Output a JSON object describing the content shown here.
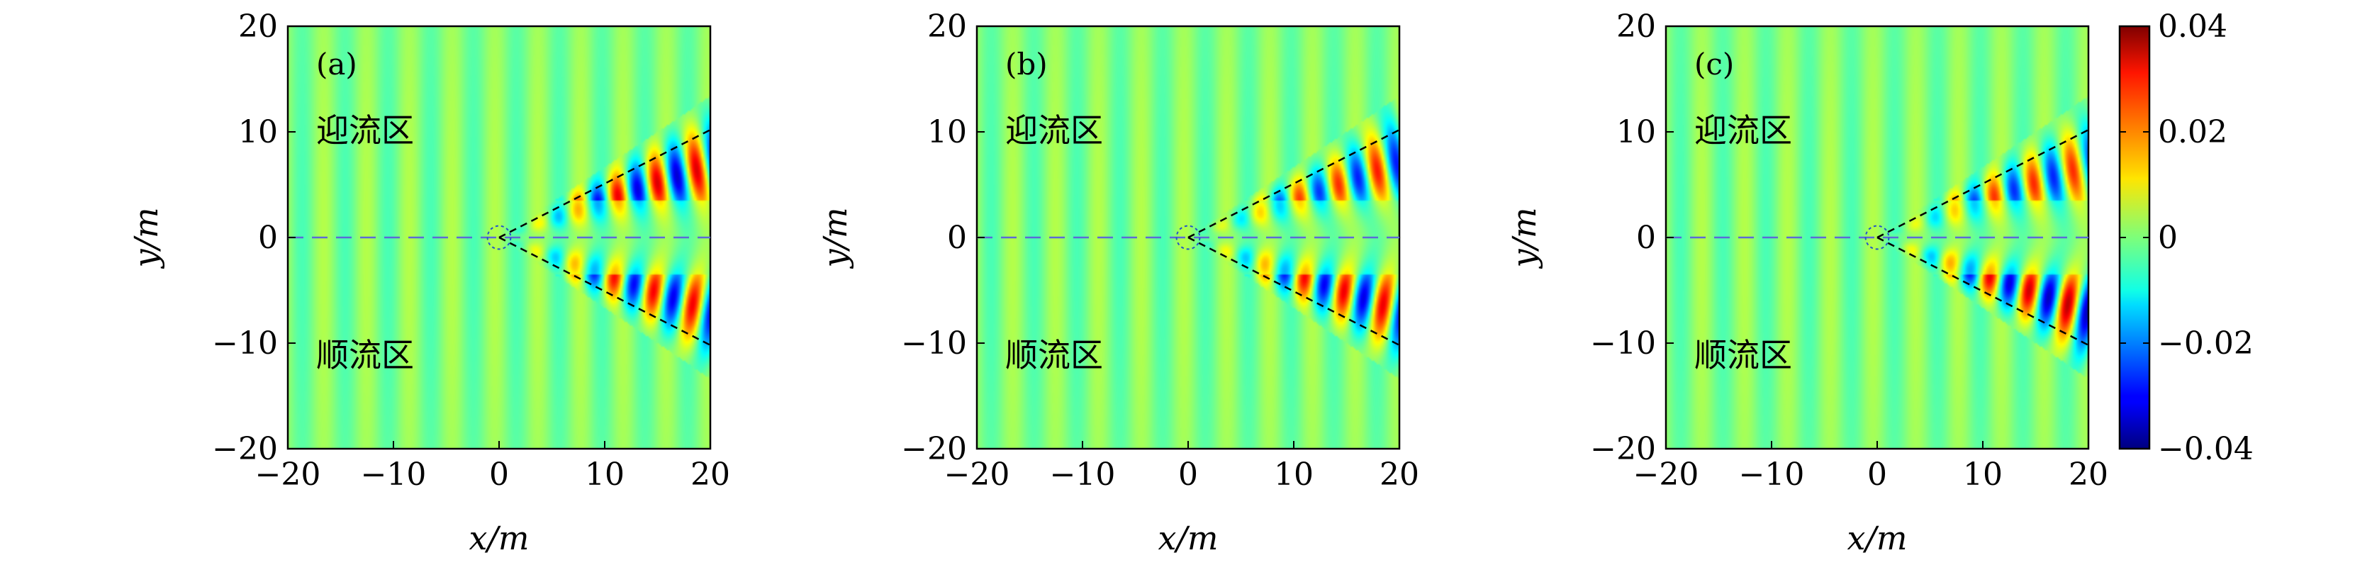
{
  "chart_data": [
    {
      "type": "heatmap",
      "panel_label": "(a)",
      "xlabel": "x/m",
      "ylabel": "y/m",
      "xlim": [
        -20,
        20
      ],
      "ylim": [
        -20,
        20
      ],
      "xticks": [
        -20,
        -10,
        0,
        10,
        20
      ],
      "yticks": [
        -20,
        -10,
        0,
        10,
        20
      ],
      "xtick_labels": [
        "−20",
        "−10",
        "0",
        "10",
        "20"
      ],
      "ytick_labels": [
        "−20",
        "−10",
        "0",
        "10",
        "20"
      ],
      "region_labels": {
        "upstream": "迎流区",
        "downstream": "顺流区"
      },
      "wedge_half_angle_deg": 27,
      "variant": "a"
    },
    {
      "type": "heatmap",
      "panel_label": "(b)",
      "xlabel": "x/m",
      "ylabel": "y/m",
      "xlim": [
        -20,
        20
      ],
      "ylim": [
        -20,
        20
      ],
      "xticks": [
        -20,
        -10,
        0,
        10,
        20
      ],
      "yticks": [
        -20,
        -10,
        0,
        10,
        20
      ],
      "xtick_labels": [
        "−20",
        "−10",
        "0",
        "10",
        "20"
      ],
      "ytick_labels": [
        "−20",
        "−10",
        "0",
        "10",
        "20"
      ],
      "region_labels": {
        "upstream": "迎流区",
        "downstream": "顺流区"
      },
      "wedge_half_angle_deg": 27,
      "variant": "b"
    },
    {
      "type": "heatmap",
      "panel_label": "(c)",
      "xlabel": "x/m",
      "ylabel": "y/m",
      "xlim": [
        -20,
        20
      ],
      "ylim": [
        -20,
        20
      ],
      "xticks": [
        -20,
        -10,
        0,
        10,
        20
      ],
      "yticks": [
        -20,
        -10,
        0,
        10,
        20
      ],
      "xtick_labels": [
        "−20",
        "−10",
        "0",
        "10",
        "20"
      ],
      "ytick_labels": [
        "−20",
        "−10",
        "0",
        "10",
        "20"
      ],
      "region_labels": {
        "upstream": "迎流区",
        "downstream": "顺流区"
      },
      "wedge_half_angle_deg": 27,
      "variant": "c"
    }
  ],
  "colorbar": {
    "min": -0.04,
    "max": 0.04,
    "ticks": [
      0.04,
      0.02,
      0,
      -0.02,
      -0.04
    ],
    "tick_labels": [
      "0.04",
      "0.02",
      "0",
      "−0.02",
      "−0.04"
    ],
    "colormap": "jet"
  }
}
